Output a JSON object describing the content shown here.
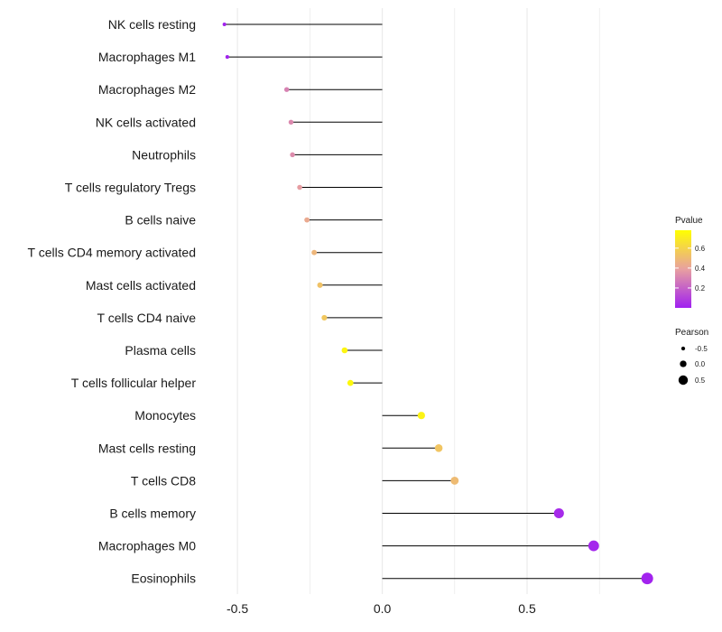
{
  "chart_data": {
    "type": "lollipop",
    "title": "",
    "xlabel": "",
    "ylabel": "",
    "xlim": [
      -0.6,
      0.93
    ],
    "x_ticks": [
      -0.5,
      0.0,
      0.5
    ],
    "x_tick_labels": [
      "-0.5",
      "0.0",
      "0.5"
    ],
    "gridlines": true,
    "categories": [
      "NK cells resting",
      "Macrophages M1",
      "Macrophages M2",
      "NK cells activated",
      "Neutrophils",
      "T cells regulatory  Tregs",
      "B cells naive",
      "T cells CD4 memory activated",
      "Mast cells activated",
      "T cells CD4 naive",
      "Plasma cells",
      "T cells follicular helper",
      "Monocytes",
      "Mast cells resting",
      "T cells CD8",
      "B cells memory",
      "Macrophages M0",
      "Eosinophils"
    ],
    "values": [
      -0.545,
      -0.535,
      -0.33,
      -0.315,
      -0.31,
      -0.285,
      -0.26,
      -0.235,
      -0.215,
      -0.2,
      -0.13,
      -0.11,
      0.135,
      0.195,
      0.25,
      0.61,
      0.73,
      0.915
    ],
    "pvalues": [
      0.01,
      0.01,
      0.3,
      0.32,
      0.33,
      0.38,
      0.43,
      0.48,
      0.53,
      0.55,
      0.74,
      0.75,
      0.73,
      0.54,
      0.5,
      0.03,
      0.02,
      0.01
    ],
    "legend_pvalue": {
      "title": "Pvalue",
      "ticks": [
        0.2,
        0.4,
        0.6
      ],
      "tick_labels": [
        "0.2",
        "0.4",
        "0.6"
      ],
      "range": [
        0.0,
        0.78
      ],
      "low_color": "#a020f0",
      "mid_color": "#e8a0a0",
      "high_color": "#ffff00"
    },
    "legend_size": {
      "title": "Pearson",
      "values": [
        -0.5,
        0.0,
        0.5
      ],
      "labels": [
        "-0.5",
        "0.0",
        "0.5"
      ]
    },
    "legend_position": "right",
    "stem_color": "#000000",
    "grid_color": "#ebebeb"
  }
}
